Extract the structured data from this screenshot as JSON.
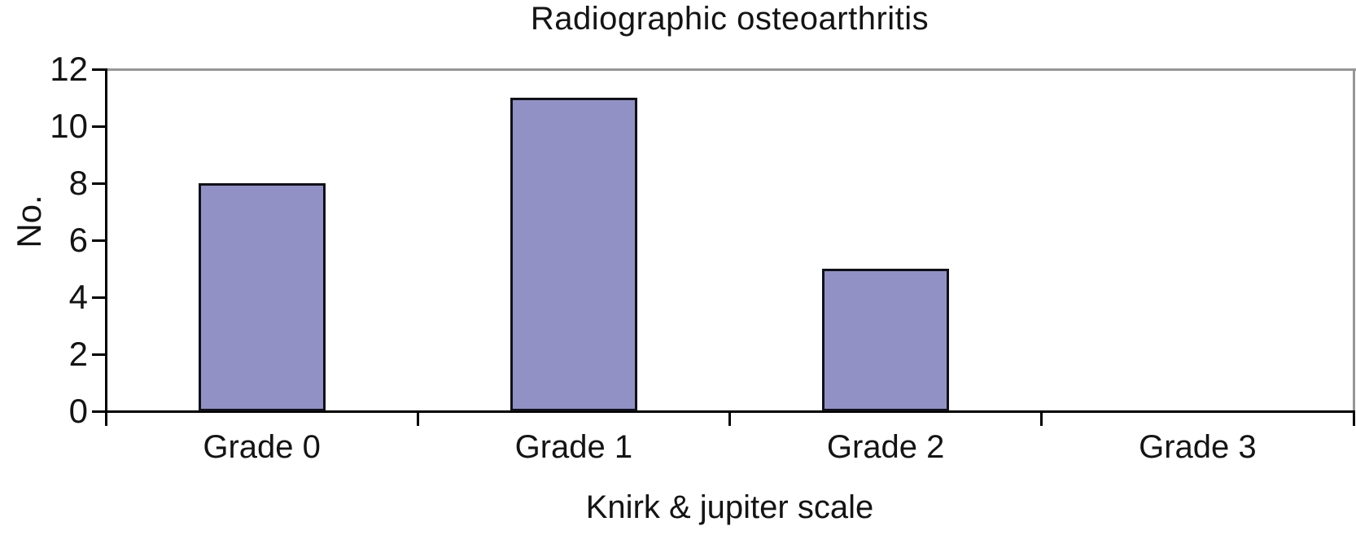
{
  "chart_data": {
    "type": "bar",
    "title": "Radiographic osteoarthritis",
    "xlabel": "Knirk & jupiter scale",
    "ylabel": "No.",
    "categories": [
      "Grade 0",
      "Grade 1",
      "Grade 2",
      "Grade 3"
    ],
    "values": [
      8,
      11,
      5,
      0
    ],
    "ylim": [
      0,
      12
    ],
    "yticks": [
      0,
      2,
      4,
      6,
      8,
      10,
      12
    ],
    "grid": false,
    "legend": false,
    "plot_border": {
      "top": true,
      "right": true,
      "left": true,
      "bottom": true
    },
    "colors": {
      "bar_fill": "#9191c5",
      "bar_border": "#101018",
      "axis": "#000000",
      "top_border": "#969696",
      "right_border": "#969696",
      "text": "#141414",
      "background": "#ffffff"
    }
  }
}
